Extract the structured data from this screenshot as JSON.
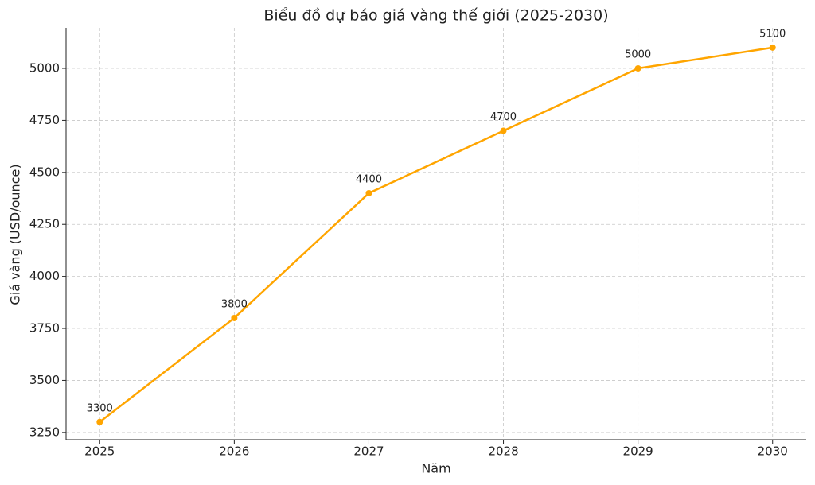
{
  "chart_data": {
    "type": "line",
    "title": "Biểu đồ dự báo giá vàng thế giới (2025-2030)",
    "x_label": "Năm",
    "y_label": "Giá vàng (USD/ounce)",
    "x": [
      2025,
      2026,
      2027,
      2028,
      2029,
      2030
    ],
    "series": [
      {
        "name": "Giá vàng",
        "color": "#ffa500",
        "values": [
          3300,
          3800,
          4400,
          4700,
          5000,
          5100
        ]
      }
    ],
    "xlim": [
      2024.75,
      2030.25
    ],
    "xticks": [
      2025,
      2026,
      2027,
      2028,
      2029,
      2030
    ],
    "ylim": [
      3215,
      5195
    ],
    "yticks": [
      3250,
      3500,
      3750,
      4000,
      4250,
      4500,
      4750,
      5000
    ],
    "grid": true,
    "data_labels": true
  }
}
